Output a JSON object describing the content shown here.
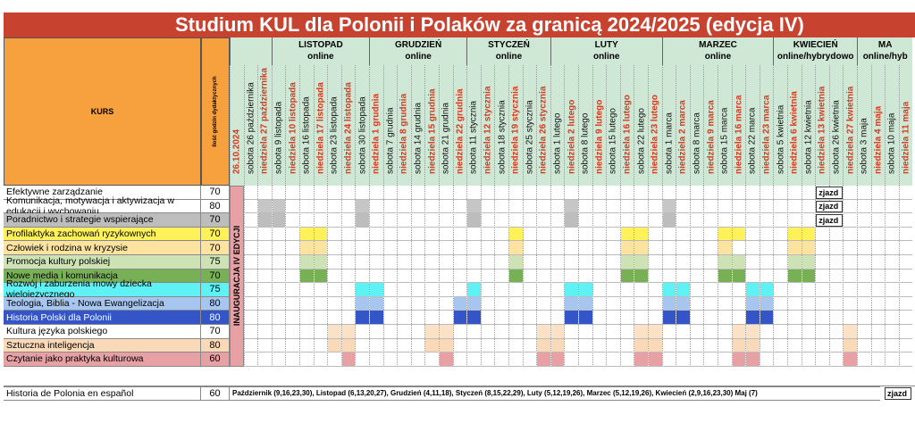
{
  "title": "Studium KUL dla Polonii i Polaków za granicą 2024/2025 (edycja IV)",
  "header": {
    "kurs_label": "KURS",
    "hours_label": "ilość godzin dydaktycznych",
    "first_date": "26.10.2024",
    "inauguracja_label": "INAUGURACJA IV EDYCJI"
  },
  "months": [
    {
      "name": "LISTOPAD",
      "mode": "online",
      "dates": [
        [
          "sobota 9 listopada",
          "sat"
        ],
        [
          "niedziela 10 listopada",
          "sun"
        ],
        [
          "sobota 16 listopada",
          "sat"
        ],
        [
          "niedziela 17 listopada",
          "sun"
        ],
        [
          "sobota 23 listopada",
          "sat"
        ],
        [
          "niedziela 24 listopada",
          "sun"
        ],
        [
          "sobota 30 listopada",
          "sat"
        ]
      ]
    },
    {
      "name": "GRUDZIEŃ",
      "mode": "online",
      "dates": [
        [
          "niedziela 1 grudnia",
          "sun"
        ],
        [
          "sobota 7 grudnia",
          "sat"
        ],
        [
          "niedziela 8 grudnia",
          "sun"
        ],
        [
          "sobota 14 grudnia",
          "sat"
        ],
        [
          "niedziela 15 grudnia",
          "sun"
        ],
        [
          "sobota 21 grudnia",
          "sat"
        ],
        [
          "niedziela 22 grudnia",
          "sun"
        ]
      ]
    },
    {
      "name": "STYCZEŃ",
      "mode": "online",
      "dates": [
        [
          "sobota 11 stycznia",
          "sat"
        ],
        [
          "niedziela 12 stycznia",
          "sun"
        ],
        [
          "sobota 18 stycznia",
          "sat"
        ],
        [
          "niedziela 19 stycznia",
          "sun"
        ],
        [
          "sobota 25 stycznia",
          "sat"
        ],
        [
          "niedziela 26 stycznia",
          "sun"
        ]
      ]
    },
    {
      "name": "LUTY",
      "mode": "online",
      "dates": [
        [
          "sobota 1 lutego",
          "sat"
        ],
        [
          "niedziela 2 lutego",
          "sun"
        ],
        [
          "sobota 8 lutego",
          "sat"
        ],
        [
          "niedziela 9 lutego",
          "sun"
        ],
        [
          "sobota 15 lutego",
          "sat"
        ],
        [
          "niedziela 16 lutego",
          "sun"
        ],
        [
          "sobota 22 lutego",
          "sat"
        ],
        [
          "niedziela 23 lutego",
          "sun"
        ]
      ]
    },
    {
      "name": "MARZEC",
      "mode": "online",
      "dates": [
        [
          "sobota 1 marca",
          "sat"
        ],
        [
          "niedziela 2 marca",
          "sun"
        ],
        [
          "sobota 8 marca",
          "sat"
        ],
        [
          "niedziela 9 marca",
          "sun"
        ],
        [
          "sobota 15 marca",
          "sat"
        ],
        [
          "niedziela 16 marca",
          "sun"
        ],
        [
          "sobota 22 marca",
          "sat"
        ],
        [
          "niedziela 23 marca",
          "sun"
        ]
      ]
    },
    {
      "name": "KWIECIEŃ",
      "mode": "online/hybrydowo",
      "dates": [
        [
          "sobota 5 kwietnia",
          "sat"
        ],
        [
          "niedziela 6 kwietnia",
          "sun"
        ],
        [
          "sobota 12 kwietnia",
          "sat"
        ],
        [
          "niedziela 13 kwietnia",
          "sun"
        ],
        [
          "sobota 26 kwietnia",
          "sat"
        ],
        [
          "niedziela 27 kwietnia",
          "sun"
        ]
      ]
    },
    {
      "name": "MA",
      "mode": "online/hyb",
      "dates": [
        [
          "sobota 3 maja",
          "sat"
        ],
        [
          "niedziela 4 maja",
          "sun"
        ],
        [
          "sobota 10 maja",
          "sat"
        ],
        [
          "niedziela 11 maja",
          "sun"
        ]
      ]
    }
  ],
  "early_dates": [
    [
      "sobota 26 października",
      "sat"
    ],
    [
      "niedziela 27 października",
      "sun"
    ]
  ],
  "courses": [
    {
      "name": "Efektywne zarządzanie",
      "hours": "70",
      "color": "#ffffff"
    },
    {
      "name": "Komunikacja, motywacja i aktywizacja w edukacji i wychowaniu",
      "hours": "80",
      "color": "#ffffff"
    },
    {
      "name": "Poradnictwo i strategie wspierające",
      "hours": "70",
      "color": "#bdbdbd"
    },
    {
      "name": "Profilaktyka zachowań ryzykownych",
      "hours": "70",
      "color": "#fff15a"
    },
    {
      "name": "Człowiek i rodzina w kryzysie",
      "hours": "70",
      "color": "#fde3a0"
    },
    {
      "name": "Promocja kultury polskiej",
      "hours": "75",
      "color": "#cde3b5"
    },
    {
      "name": "Nowe media i komunikacja",
      "hours": "70",
      "color": "#78b155"
    },
    {
      "name": "Rozwój i zaburzenia mowy dziecka wielojęzycznego",
      "hours": "75",
      "color": "#5ff2f5"
    },
    {
      "name": "Teologia, Biblia - Nowa Ewangelizacja",
      "hours": "80",
      "color": "#a6c6f0"
    },
    {
      "name": "Historia Polski dla Polonii",
      "hours": "80",
      "color": "#3355c8"
    },
    {
      "name": "Kultura języka polskiego",
      "hours": "70",
      "color": "#ffffff"
    },
    {
      "name": "Sztuczna inteligencja",
      "hours": "80",
      "color": "#f9d9b8"
    },
    {
      "name": "Czytanie jako praktyka kulturowa",
      "hours": "60",
      "color": "#e7a1a4"
    }
  ],
  "zjazd_label": "zjazd",
  "extra_course": {
    "name": "Historia de Polonia en español",
    "hours": "60"
  },
  "extra_schedule": "Październik (9,16,23,30), Listopad (6,13,20,27), Grudzień (4,11,18), Styczeń (8,15,22,29), Luty (5,12,19,26), Marzec (5,12,19,26), Kwiecień (2,9,16,23,30) Maj (7)"
}
